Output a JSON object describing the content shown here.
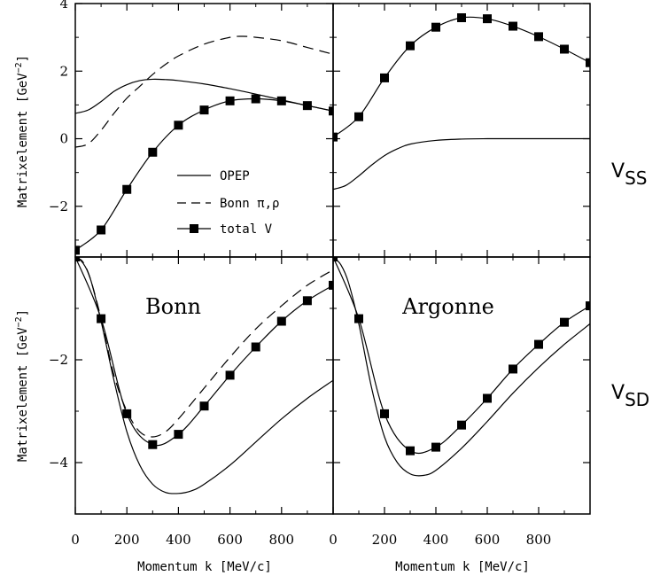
{
  "figure": {
    "row_labels": [
      {
        "main": "V",
        "sub": "SS"
      },
      {
        "main": "V",
        "sub": "SD"
      }
    ],
    "ylabel": "Matrixelement [GeV",
    "ylabel_sup": "−2",
    "ylabel_end": "]",
    "xlabel": "Momentum k [MeV/c]"
  },
  "legend": [
    {
      "label": "OPEP",
      "style": "solid"
    },
    {
      "label": "Bonn π,ρ",
      "style": "dashed"
    },
    {
      "label": "total V",
      "style": "solid-marker"
    }
  ],
  "chart_data": [
    {
      "type": "line",
      "row": "V_SS",
      "column": 0,
      "annotation": "",
      "xlim": [
        0,
        1000
      ],
      "ylim": [
        -3.5,
        4
      ],
      "xticks": [
        0,
        200,
        400,
        600,
        800
      ],
      "yticks": [
        -2,
        0,
        2,
        4
      ],
      "series": [
        {
          "name": "OPEP",
          "style": "solid",
          "markers": false,
          "x": [
            0,
            50,
            100,
            150,
            200,
            250,
            300,
            350,
            400,
            500,
            600,
            700,
            800,
            900,
            1000
          ],
          "y": [
            0.75,
            0.85,
            1.1,
            1.4,
            1.6,
            1.72,
            1.76,
            1.75,
            1.72,
            1.62,
            1.48,
            1.32,
            1.15,
            0.98,
            0.82
          ]
        },
        {
          "name": "Bonn π,ρ",
          "style": "dashed",
          "markers": false,
          "x": [
            0,
            50,
            100,
            150,
            200,
            250,
            300,
            350,
            400,
            500,
            600,
            650,
            700,
            800,
            900,
            1000
          ],
          "y": [
            -0.25,
            -0.15,
            0.25,
            0.75,
            1.2,
            1.55,
            1.9,
            2.2,
            2.45,
            2.8,
            3.0,
            3.03,
            3.0,
            2.9,
            2.7,
            2.5
          ]
        },
        {
          "name": "total V",
          "style": "solid",
          "markers": true,
          "x": [
            0,
            100,
            200,
            300,
            400,
            500,
            600,
            700,
            800,
            900,
            1000
          ],
          "y": [
            -3.3,
            -2.7,
            -1.5,
            -0.4,
            0.4,
            0.85,
            1.12,
            1.18,
            1.12,
            0.98,
            0.82
          ]
        }
      ]
    },
    {
      "type": "line",
      "row": "V_SS",
      "column": 1,
      "annotation": "",
      "xlim": [
        0,
        1000
      ],
      "ylim": [
        -3.5,
        4
      ],
      "xticks": [
        0,
        200,
        400,
        600,
        800
      ],
      "yticks": [
        -2,
        0,
        2,
        4
      ],
      "series": [
        {
          "name": "OPEP",
          "style": "solid",
          "markers": false,
          "x": [
            0,
            50,
            100,
            150,
            200,
            250,
            300,
            400,
            500,
            600,
            700,
            800,
            900,
            1000
          ],
          "y": [
            -1.5,
            -1.38,
            -1.1,
            -0.78,
            -0.5,
            -0.3,
            -0.16,
            -0.05,
            -0.01,
            0.0,
            0.0,
            0.0,
            0.0,
            0.0
          ]
        },
        {
          "name": "total V",
          "style": "solid",
          "markers": true,
          "x": [
            0,
            100,
            200,
            300,
            400,
            500,
            600,
            700,
            800,
            900,
            1000
          ],
          "y": [
            0.05,
            0.65,
            1.8,
            2.75,
            3.3,
            3.58,
            3.55,
            3.33,
            3.02,
            2.65,
            2.25
          ]
        }
      ]
    },
    {
      "type": "line",
      "row": "V_SD",
      "column": 0,
      "annotation": "Bonn",
      "xlim": [
        0,
        1000
      ],
      "ylim": [
        -5,
        0
      ],
      "xticks": [
        0,
        200,
        400,
        600,
        800
      ],
      "xticklabels": [
        "0",
        "200",
        "400",
        "600",
        "800"
      ],
      "yticks": [
        -4,
        -2
      ],
      "series": [
        {
          "name": "OPEP",
          "style": "solid",
          "markers": false,
          "x": [
            0,
            30,
            60,
            100,
            150,
            200,
            250,
            300,
            350,
            400,
            450,
            500,
            600,
            700,
            800,
            900,
            1000
          ],
          "y": [
            0.0,
            -0.12,
            -0.45,
            -1.25,
            -2.4,
            -3.4,
            -4.05,
            -4.42,
            -4.58,
            -4.6,
            -4.55,
            -4.42,
            -4.05,
            -3.6,
            -3.15,
            -2.75,
            -2.4
          ]
        },
        {
          "name": "Bonn π,ρ",
          "style": "dashed",
          "markers": false,
          "x": [
            0,
            30,
            60,
            100,
            150,
            200,
            250,
            300,
            350,
            400,
            500,
            600,
            700,
            800,
            900,
            1000
          ],
          "y": [
            0.0,
            -0.1,
            -0.45,
            -1.2,
            -2.3,
            -3.0,
            -3.4,
            -3.5,
            -3.4,
            -3.15,
            -2.55,
            -1.95,
            -1.4,
            -0.95,
            -0.55,
            -0.25
          ]
        },
        {
          "name": "total V",
          "style": "solid",
          "markers": true,
          "x": [
            0,
            100,
            200,
            300,
            400,
            500,
            600,
            700,
            800,
            900,
            1000
          ],
          "y": [
            0.0,
            -1.2,
            -3.05,
            -3.65,
            -3.45,
            -2.9,
            -2.3,
            -1.75,
            -1.25,
            -0.85,
            -0.55
          ]
        }
      ]
    },
    {
      "type": "line",
      "row": "V_SD",
      "column": 1,
      "annotation": "Argonne",
      "xlim": [
        0,
        1000
      ],
      "ylim": [
        -5,
        0
      ],
      "xticks": [
        0,
        200,
        400,
        600,
        800
      ],
      "xticklabels": [
        "0",
        "200",
        "400",
        "600",
        "800"
      ],
      "yticks": [
        -4,
        -2
      ],
      "series": [
        {
          "name": "OPEP",
          "style": "solid",
          "markers": false,
          "x": [
            0,
            30,
            60,
            100,
            150,
            200,
            250,
            300,
            350,
            400,
            500,
            600,
            700,
            800,
            900,
            1000
          ],
          "y": [
            0.0,
            -0.15,
            -0.5,
            -1.3,
            -2.55,
            -3.5,
            -4.0,
            -4.22,
            -4.25,
            -4.15,
            -3.72,
            -3.2,
            -2.65,
            -2.15,
            -1.7,
            -1.3
          ]
        },
        {
          "name": "total V",
          "style": "solid",
          "markers": true,
          "x": [
            0,
            100,
            200,
            300,
            400,
            500,
            600,
            700,
            800,
            900,
            1000
          ],
          "y": [
            0.0,
            -1.2,
            -3.05,
            -3.77,
            -3.7,
            -3.27,
            -2.75,
            -2.18,
            -1.7,
            -1.27,
            -0.95
          ]
        }
      ]
    }
  ]
}
